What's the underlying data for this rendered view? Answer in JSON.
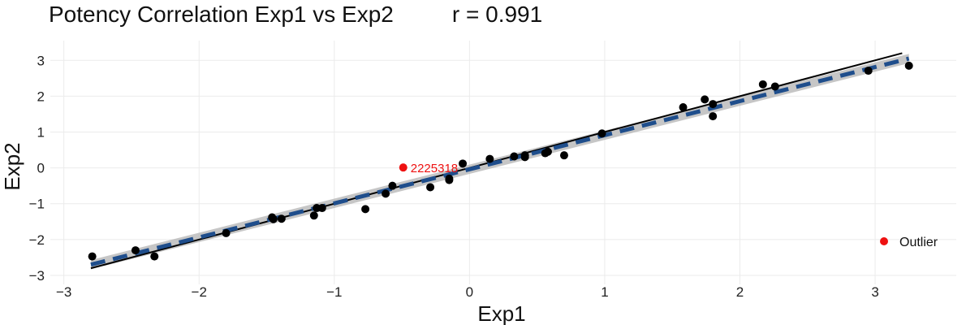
{
  "chart_data": {
    "type": "scatter",
    "title": "Potency Correlation Exp1 vs Exp2",
    "subtitle": "r = 0.991",
    "xlabel": "Exp1",
    "ylabel": "Exp2",
    "xlim": [
      -3.1,
      3.6
    ],
    "ylim": [
      -3.25,
      3.55
    ],
    "x_ticks": [
      -3,
      -2,
      -1,
      0,
      1,
      2,
      3
    ],
    "y_ticks": [
      -3,
      -2,
      -1,
      0,
      1,
      2,
      3
    ],
    "x_tick_labels": [
      "−3",
      "−2",
      "−1",
      "0",
      "1",
      "2",
      "3"
    ],
    "y_tick_labels": [
      "−3",
      "−2",
      "−1",
      "0",
      "1",
      "2",
      "3"
    ],
    "grid": true,
    "legend": {
      "position": "bottom-right",
      "entries": [
        {
          "label": "Outlier",
          "color": "#ee1111"
        }
      ]
    },
    "identity_line": {
      "x": [
        -2.8,
        3.2
      ],
      "y": [
        -2.8,
        3.2
      ],
      "color": "#000000"
    },
    "fit_line": {
      "x": [
        -2.8,
        3.25
      ],
      "y": [
        -2.7,
        3.05
      ],
      "color": "#1f4e8c",
      "band_color": "#b3b3b3"
    },
    "series": [
      {
        "color": "#000000",
        "points": [
          [
            -2.79,
            -2.47
          ],
          [
            -2.47,
            -2.3
          ],
          [
            -2.33,
            -2.47
          ],
          [
            -1.8,
            -1.82
          ],
          [
            -1.46,
            -1.38
          ],
          [
            -1.45,
            -1.43
          ],
          [
            -1.39,
            -1.42
          ],
          [
            -1.15,
            -1.33
          ],
          [
            -1.13,
            -1.12
          ],
          [
            -1.09,
            -1.12
          ],
          [
            -0.77,
            -1.15
          ],
          [
            -0.62,
            -0.72
          ],
          [
            -0.57,
            -0.5
          ],
          [
            -0.29,
            -0.54
          ],
          [
            -0.15,
            -0.34
          ],
          [
            -0.15,
            -0.3
          ],
          [
            -0.05,
            0.12
          ],
          [
            0.15,
            0.25
          ],
          [
            0.33,
            0.32
          ],
          [
            0.41,
            0.3
          ],
          [
            0.41,
            0.35
          ],
          [
            0.56,
            0.41
          ],
          [
            0.58,
            0.45
          ],
          [
            0.7,
            0.35
          ],
          [
            0.98,
            0.96
          ],
          [
            1.58,
            1.69
          ],
          [
            1.74,
            1.91
          ],
          [
            1.8,
            1.44
          ],
          [
            1.8,
            1.78
          ],
          [
            2.17,
            2.33
          ],
          [
            2.26,
            2.27
          ],
          [
            2.95,
            2.71
          ],
          [
            3.25,
            2.85
          ]
        ]
      },
      {
        "name": "Outlier",
        "color": "#ee1111",
        "points": [
          [
            -0.49,
            0.01
          ]
        ],
        "labels": [
          "2225318"
        ]
      }
    ]
  }
}
